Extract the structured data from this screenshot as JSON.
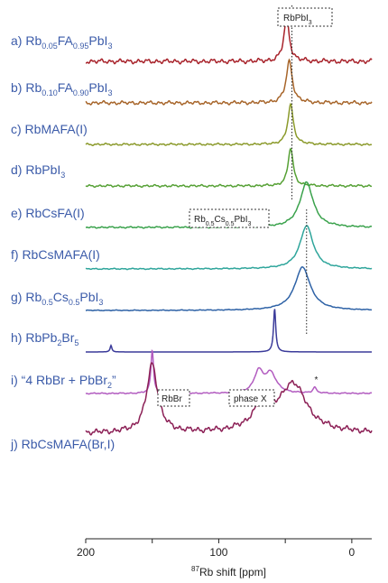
{
  "chart_data": {
    "type": "line",
    "xlabel_sup": "87",
    "xlabel": "Rb shift [ppm]",
    "xlim": [
      200,
      -15
    ],
    "xticks": [
      200,
      100,
      0
    ],
    "colors": [
      "#a8232b",
      "#a7652a",
      "#8b9a2b",
      "#55a034",
      "#3aa24c",
      "#2ea59b",
      "#2e62a6",
      "#3b3b9a",
      "#b25cc0",
      "#8c2056"
    ],
    "series": [
      {
        "label": [
          "a) Rb",
          "0.05",
          "FA",
          "0.95",
          "PbI",
          "3"
        ],
        "peaks": [
          {
            "x": 49,
            "h": 1.0,
            "w": 2.5
          }
        ],
        "noise": 0.12
      },
      {
        "label": [
          "b) Rb",
          "0.10",
          "FA",
          "0.90",
          "PbI",
          "3"
        ],
        "peaks": [
          {
            "x": 47,
            "h": 1.0,
            "w": 2.8
          }
        ],
        "noise": 0.1
      },
      {
        "label": [
          "c) RbMAFA(I)"
        ],
        "peaks": [
          {
            "x": 46,
            "h": 1.0,
            "w": 2.5
          }
        ],
        "noise": 0.06
      },
      {
        "label": [
          "d) RbPbI",
          "3"
        ],
        "peaks": [
          {
            "x": 46,
            "h": 1.0,
            "w": 2.3
          }
        ],
        "noise": 0.07
      },
      {
        "label": [
          "e) RbCsFA(I)"
        ],
        "peaks": [
          {
            "x": 34,
            "h": 1.0,
            "w": 6
          }
        ],
        "noise": 0.04
      },
      {
        "label": [
          "f) RbCsMAFA(I)"
        ],
        "peaks": [
          {
            "x": 34,
            "h": 1.0,
            "w": 6
          }
        ],
        "noise": 0.03
      },
      {
        "label": [
          "g) Rb",
          "0.5",
          "Cs",
          "0.5",
          "PbI",
          "3"
        ],
        "peaks": [
          {
            "x": 37,
            "h": 1.0,
            "w": 7
          }
        ],
        "noise": 0.02
      },
      {
        "label": [
          "h) RbPb",
          "2",
          "Br",
          "5"
        ],
        "peaks": [
          {
            "x": 58,
            "h": 1.0,
            "w": 1.0
          },
          {
            "x": 181,
            "h": 0.15,
            "w": 0.8
          }
        ],
        "noise": 0.0
      },
      {
        "label": [
          "i) “4 RbBr + PbBr",
          "2",
          "”"
        ],
        "peaks": [
          {
            "x": 150,
            "h": 1.0,
            "w": 1.2
          },
          {
            "x": 70,
            "h": 0.48,
            "w": 4
          },
          {
            "x": 61,
            "h": 0.45,
            "w": 5
          },
          {
            "x": 28,
            "h": 0.14,
            "w": 1.5
          }
        ],
        "noise": 0.03
      },
      {
        "label": [
          "j) RbCsMAFA(Br,I)"
        ],
        "peaks": [
          {
            "x": 150,
            "h": 1.0,
            "w": 5
          },
          {
            "x": 67,
            "h": 0.35,
            "w": 9
          },
          {
            "x": 44,
            "h": 0.7,
            "w": 12
          }
        ],
        "noise": 0.09
      }
    ],
    "annotations": [
      {
        "parts": [
          "RbPbI",
          "3"
        ]
      },
      {
        "parts": [
          "Rb",
          "0.5",
          "Cs",
          "0.5",
          "PbI",
          "3"
        ]
      },
      {
        "parts": [
          "RbBr"
        ]
      },
      {
        "parts": [
          "phase X"
        ]
      },
      {
        "parts": [
          "*"
        ]
      }
    ]
  }
}
